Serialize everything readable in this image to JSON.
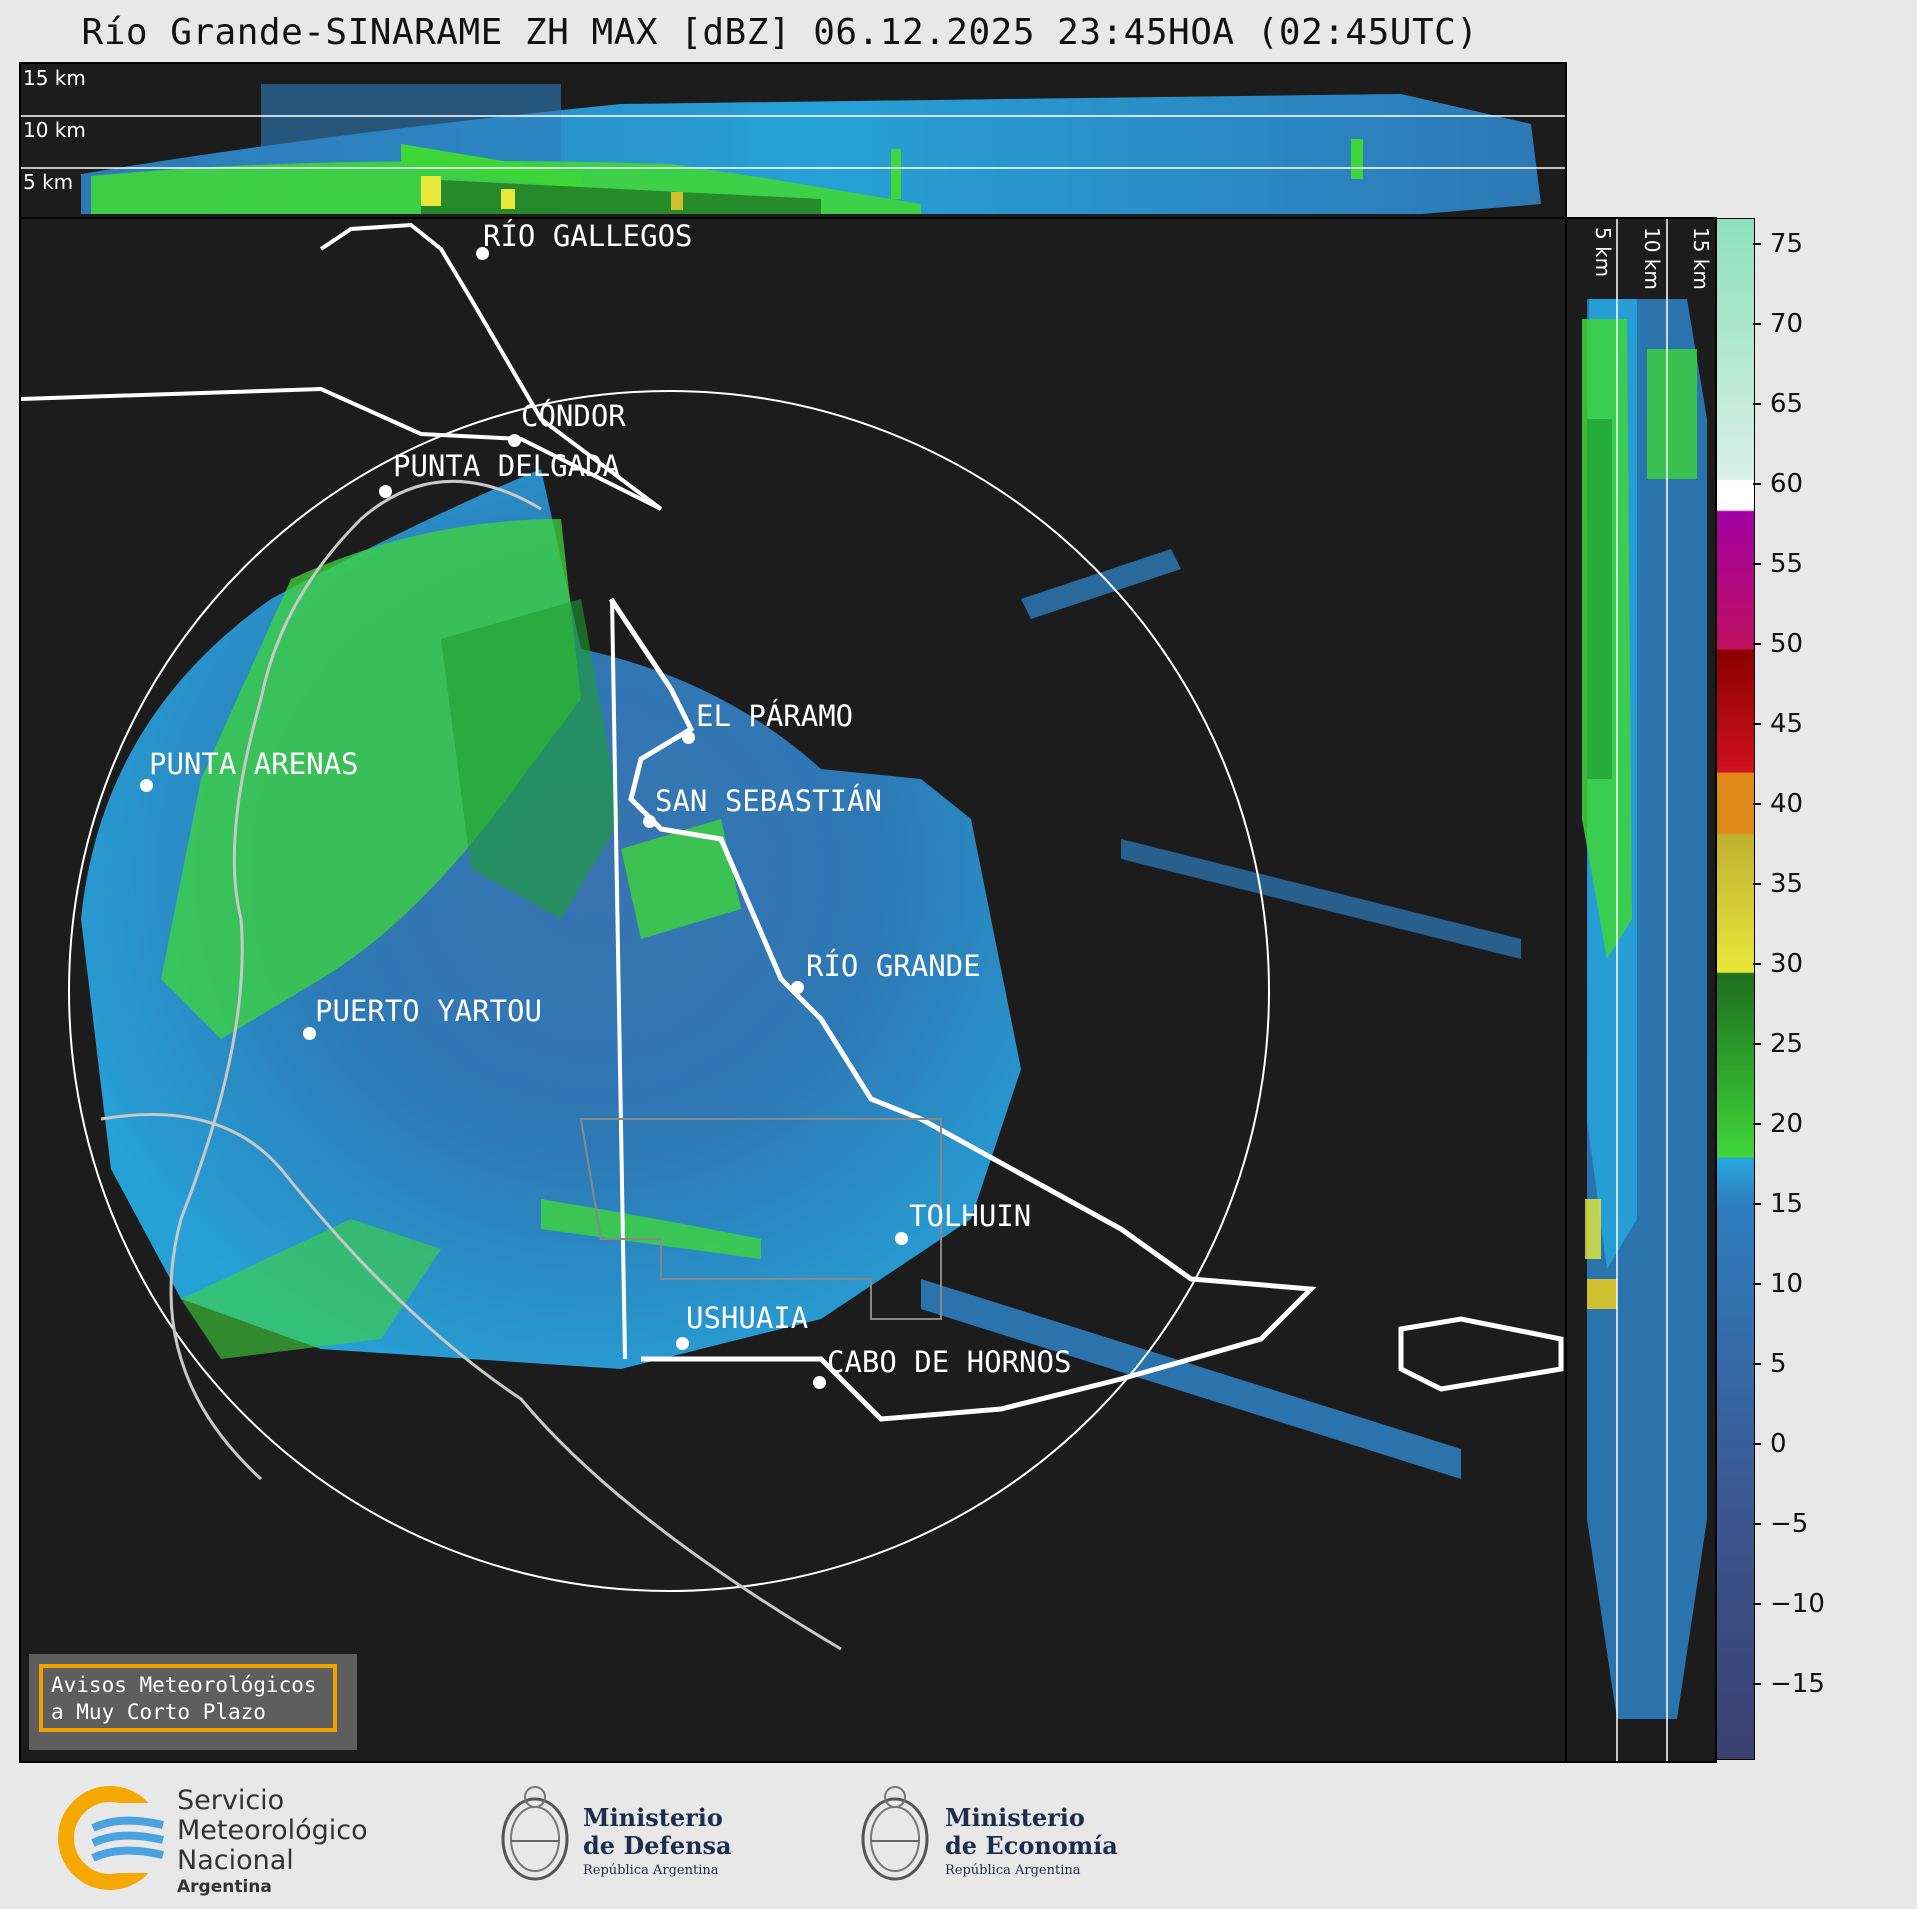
{
  "title": "Río Grande-SINARAME ZH MAX [dBZ] 06.12.2025 23:45HOA (02:45UTC)",
  "altitude_labels": [
    "15 km",
    "10 km",
    "5 km"
  ],
  "colorbar": {
    "ticks": [
      "75",
      "70",
      "65",
      "60",
      "55",
      "50",
      "45",
      "40",
      "35",
      "30",
      "25",
      "20",
      "15",
      "10",
      "5",
      "0",
      "−5",
      "−10",
      "−15"
    ],
    "colors": {
      "dark_blue": "#3a3f6e",
      "blue": "#2e7dbd",
      "light_blue": "#27a8e0",
      "green": "#3fd63a",
      "dark_green": "#1e6e1e",
      "yellow": "#e8e83a",
      "orange": "#e08a1a",
      "red": "#d01020",
      "magenta": "#e010e0",
      "white": "#ffffff",
      "mint": "#8ee0c0"
    }
  },
  "cities": [
    {
      "name": "RÍO GALLEGOS"
    },
    {
      "name": "CÓNDOR"
    },
    {
      "name": "PUNTA DELGADA"
    },
    {
      "name": "EL PÁRAMO"
    },
    {
      "name": "PUNTA ARENAS"
    },
    {
      "name": "SAN SEBASTIÁN"
    },
    {
      "name": "RÍO GRANDE"
    },
    {
      "name": "PUERTO YARTOU"
    },
    {
      "name": "TOLHUIN"
    },
    {
      "name": "USHUAIA"
    },
    {
      "name": "CABO DE HORNOS"
    }
  ],
  "warning_box": {
    "line1": "Avisos Meteorológicos",
    "line2": "a Muy Corto Plazo"
  },
  "footer": {
    "smn": {
      "line1": "Servicio",
      "line2": "Meteorológico",
      "line3": "Nacional",
      "line4": "Argentina"
    },
    "defensa": {
      "line1": "Ministerio",
      "line2": "de Defensa",
      "line3": "República Argentina"
    },
    "economia": {
      "line1": "Ministerio",
      "line2": "de Economía",
      "line3": "República Argentina"
    }
  }
}
